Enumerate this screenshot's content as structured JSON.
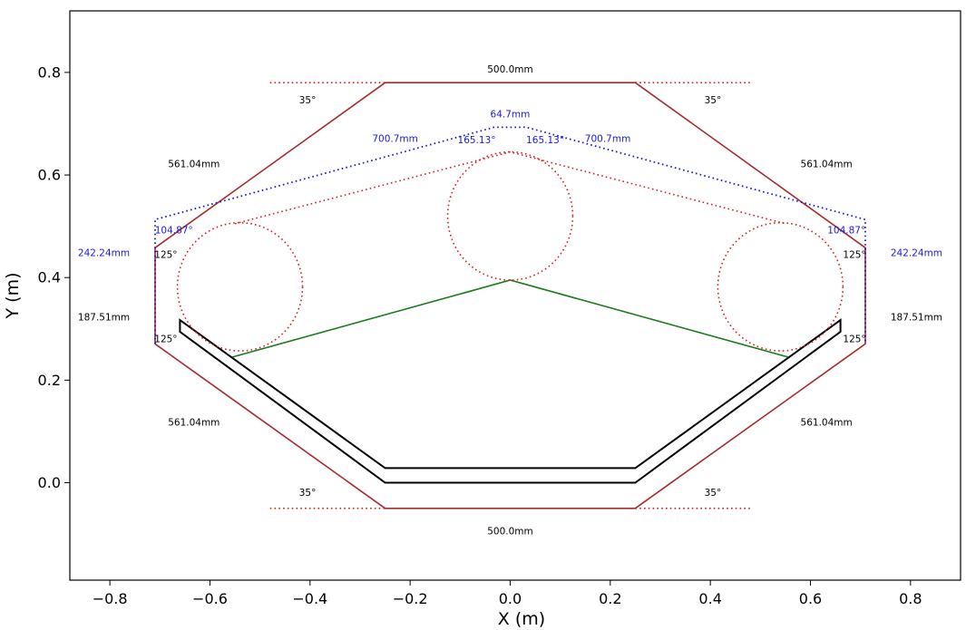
{
  "chart_data": {
    "type": "line",
    "xlabel": "X (m)",
    "ylabel": "Y (m)",
    "xlim": [
      -0.88,
      0.9
    ],
    "ylim": [
      -0.19,
      0.92
    ],
    "xticks": [
      -0.8,
      -0.6,
      -0.4,
      -0.2,
      0.0,
      0.2,
      0.4,
      0.6,
      0.8
    ],
    "yticks": [
      0.0,
      0.2,
      0.4,
      0.6,
      0.8
    ],
    "xtick_labels": [
      "−0.8",
      "−0.6",
      "−0.4",
      "−0.2",
      "0.0",
      "0.2",
      "0.4",
      "0.6",
      "0.8"
    ],
    "ytick_labels": [
      "0.0",
      "0.2",
      "0.4",
      "0.6",
      "0.8"
    ],
    "grid": false,
    "polylines": [
      {
        "color": "#a52a2a",
        "style": "solid",
        "width": 1.6,
        "closed": true,
        "x": [
          -0.25,
          0.25,
          0.7096,
          0.7096,
          0.25,
          -0.25,
          -0.7096,
          -0.7096
        ],
        "y": [
          0.78,
          0.78,
          0.4582,
          0.2707,
          -0.05,
          -0.05,
          0.2707,
          0.4582
        ]
      },
      {
        "color": "#d42020",
        "style": "dotted",
        "width": 1.6,
        "closed": false,
        "x": [
          -0.48,
          -0.25
        ],
        "y": [
          0.78,
          0.78
        ]
      },
      {
        "color": "#d42020",
        "style": "dotted",
        "width": 1.6,
        "closed": false,
        "x": [
          0.25,
          0.48
        ],
        "y": [
          0.78,
          0.78
        ]
      },
      {
        "color": "#d42020",
        "style": "dotted",
        "width": 1.6,
        "closed": false,
        "x": [
          -0.48,
          -0.25
        ],
        "y": [
          -0.05,
          -0.05
        ]
      },
      {
        "color": "#d42020",
        "style": "dotted",
        "width": 1.6,
        "closed": false,
        "x": [
          0.25,
          0.48
        ],
        "y": [
          -0.05,
          -0.05
        ]
      },
      {
        "color": "#1a1ad9",
        "style": "dotted",
        "width": 1.8,
        "closed": false,
        "x": [
          -0.7096,
          -0.7096,
          -0.0323,
          0.0323,
          0.7096,
          0.7096
        ],
        "y": [
          0.2707,
          0.5131,
          0.6931,
          0.6931,
          0.5131,
          0.2707
        ]
      },
      {
        "color": "#d42020",
        "style": "dotted",
        "width": 1.6,
        "closed": false,
        "x": [
          -0.55,
          0.0,
          0.55
        ],
        "y": [
          0.505,
          0.645,
          0.505
        ]
      },
      {
        "color": "#000000",
        "style": "solid",
        "width": 2.0,
        "closed": true,
        "x": [
          -0.66,
          -0.66,
          -0.25,
          0.25,
          0.66,
          0.66,
          0.25,
          -0.25
        ],
        "y": [
          0.3171,
          0.2943,
          0.0,
          0.0,
          0.2943,
          0.3171,
          0.0284,
          0.0284
        ]
      },
      {
        "color": "#1a7a1a",
        "style": "solid",
        "width": 1.6,
        "closed": false,
        "x": [
          -0.555,
          0.0,
          0.555
        ],
        "y": [
          0.245,
          0.395,
          0.245
        ]
      }
    ],
    "circles": [
      {
        "cx": 0.0,
        "cy": 0.52,
        "r": 0.125,
        "color": "#d42020",
        "style": "dotted"
      },
      {
        "cx": -0.54,
        "cy": 0.382,
        "r": 0.125,
        "color": "#d42020",
        "style": "dotted"
      },
      {
        "cx": 0.54,
        "cy": 0.382,
        "r": 0.125,
        "color": "#d42020",
        "style": "dotted"
      }
    ],
    "annotations": [
      {
        "text": "500.0mm",
        "x": 0.0,
        "y": 0.805,
        "color": "#000000",
        "anchor": "middle"
      },
      {
        "text": "500.0mm",
        "x": 0.0,
        "y": -0.095,
        "color": "#000000",
        "anchor": "middle"
      },
      {
        "text": "35°",
        "x": -0.405,
        "y": 0.745,
        "color": "#000000",
        "anchor": "middle"
      },
      {
        "text": "35°",
        "x": 0.405,
        "y": 0.745,
        "color": "#000000",
        "anchor": "middle"
      },
      {
        "text": "35°",
        "x": -0.405,
        "y": -0.02,
        "color": "#000000",
        "anchor": "middle"
      },
      {
        "text": "35°",
        "x": 0.405,
        "y": -0.02,
        "color": "#000000",
        "anchor": "middle"
      },
      {
        "text": "561.04mm",
        "x": -0.632,
        "y": 0.62,
        "color": "#000000",
        "anchor": "middle"
      },
      {
        "text": "561.04mm",
        "x": 0.632,
        "y": 0.62,
        "color": "#000000",
        "anchor": "middle"
      },
      {
        "text": "561.04mm",
        "x": -0.632,
        "y": 0.117,
        "color": "#000000",
        "anchor": "middle"
      },
      {
        "text": "561.04mm",
        "x": 0.632,
        "y": 0.117,
        "color": "#000000",
        "anchor": "middle"
      },
      {
        "text": "242.24mm",
        "x": -0.812,
        "y": 0.447,
        "color": "#1a1ad9",
        "anchor": "middle"
      },
      {
        "text": "242.24mm",
        "x": 0.812,
        "y": 0.447,
        "color": "#1a1ad9",
        "anchor": "middle"
      },
      {
        "text": "187.51mm",
        "x": -0.812,
        "y": 0.322,
        "color": "#000000",
        "anchor": "middle"
      },
      {
        "text": "187.51mm",
        "x": 0.812,
        "y": 0.322,
        "color": "#000000",
        "anchor": "middle"
      },
      {
        "text": "125°",
        "x": -0.688,
        "y": 0.444,
        "color": "#000000",
        "anchor": "middle"
      },
      {
        "text": "125°",
        "x": 0.688,
        "y": 0.444,
        "color": "#000000",
        "anchor": "middle"
      },
      {
        "text": "125°",
        "x": -0.688,
        "y": 0.279,
        "color": "#000000",
        "anchor": "middle"
      },
      {
        "text": "125°",
        "x": 0.688,
        "y": 0.279,
        "color": "#000000",
        "anchor": "middle"
      },
      {
        "text": "104.87°",
        "x": -0.672,
        "y": 0.491,
        "color": "#1a1ad9",
        "anchor": "middle"
      },
      {
        "text": "104.87°",
        "x": 0.672,
        "y": 0.491,
        "color": "#1a1ad9",
        "anchor": "middle"
      },
      {
        "text": "64.7mm",
        "x": 0.0,
        "y": 0.718,
        "color": "#1a1ad9",
        "anchor": "middle"
      },
      {
        "text": "700.7mm",
        "x": -0.23,
        "y": 0.67,
        "color": "#1a1ad9",
        "anchor": "middle"
      },
      {
        "text": "700.7mm",
        "x": 0.195,
        "y": 0.67,
        "color": "#1a1ad9",
        "anchor": "middle"
      },
      {
        "text": "165.13°",
        "x": -0.067,
        "y": 0.667,
        "color": "#1a1ad9",
        "anchor": "middle"
      },
      {
        "text": "165.13°",
        "x": 0.07,
        "y": 0.667,
        "color": "#1a1ad9",
        "anchor": "middle"
      }
    ]
  }
}
